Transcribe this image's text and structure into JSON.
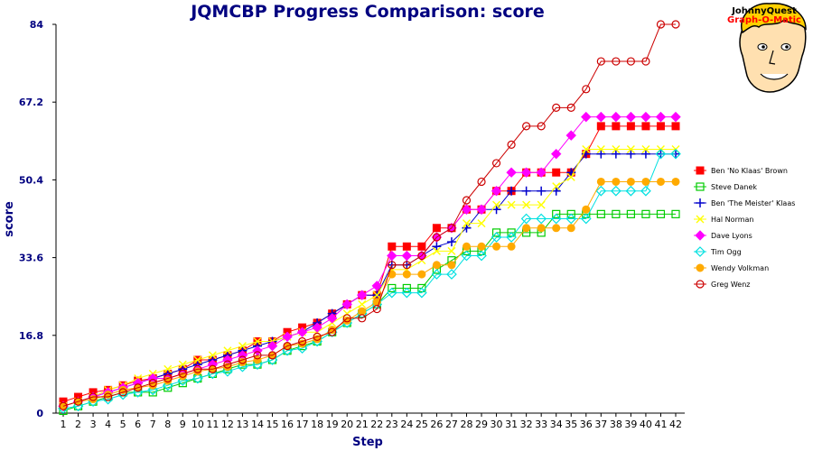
{
  "logo": {
    "line1": "JohnnyQuest",
    "line2": "Graph-O-Matic"
  },
  "chart_data": {
    "type": "line",
    "title": "JQMCBP Progress Comparison: score",
    "xlabel": "Step",
    "ylabel": "score",
    "ylim": [
      0,
      84
    ],
    "yticks": [
      "0",
      "16.8",
      "33.6",
      "50.4",
      "67.2",
      "84"
    ],
    "x": [
      1,
      2,
      3,
      4,
      5,
      6,
      7,
      8,
      9,
      10,
      11,
      12,
      13,
      14,
      15,
      16,
      17,
      18,
      19,
      20,
      21,
      22,
      23,
      24,
      25,
      26,
      27,
      28,
      29,
      30,
      31,
      32,
      33,
      34,
      35,
      36,
      37,
      38,
      39,
      40,
      41,
      42
    ],
    "legend_position": "right",
    "series": [
      {
        "name": "Ben 'No Klaas' Brown",
        "color": "#ff0000",
        "marker": "square-filled",
        "values": [
          2.5,
          3.5,
          4.5,
          5,
          6,
          7,
          7.5,
          8.5,
          9.5,
          11.5,
          11.5,
          12.5,
          13.5,
          15.5,
          15.5,
          17.5,
          18.5,
          19.5,
          21.5,
          23.5,
          25.5,
          25.5,
          36,
          36,
          36,
          40,
          40,
          44,
          44,
          48,
          48,
          52,
          52,
          52,
          52,
          56,
          62,
          62,
          62,
          62,
          62,
          62
        ]
      },
      {
        "name": "Steve Danek",
        "color": "#00cc00",
        "marker": "square-open",
        "values": [
          0.5,
          1.5,
          2.5,
          3.5,
          4.5,
          4.5,
          4.5,
          5.5,
          6.5,
          7.5,
          8.5,
          9.5,
          10.5,
          10.5,
          11.5,
          13.5,
          14.5,
          15.5,
          17.5,
          19.5,
          21.5,
          23.5,
          27,
          27,
          27,
          31,
          33,
          35,
          35,
          39,
          39,
          39,
          39,
          43,
          43,
          43,
          43,
          43,
          43,
          43,
          43,
          43
        ]
      },
      {
        "name": "Ben 'The Meister' Klaas",
        "color": "#0000cc",
        "marker": "plus",
        "values": [
          1.5,
          2.5,
          3.5,
          4.5,
          5.5,
          6.5,
          7.5,
          8.5,
          9.5,
          10.5,
          11.5,
          12.5,
          13.5,
          14.5,
          15.5,
          16.5,
          17.5,
          19.5,
          21.5,
          23.5,
          25.5,
          25.5,
          32,
          32,
          34,
          36,
          37,
          40,
          44,
          44,
          48,
          48,
          48,
          48,
          52,
          56,
          56,
          56,
          56,
          56,
          56,
          56
        ]
      },
      {
        "name": "Hal Norman",
        "color": "#ffff00",
        "marker": "cross",
        "values": [
          1.5,
          2.5,
          3.5,
          5,
          6,
          7.5,
          8.5,
          9.5,
          10.5,
          11.5,
          12.5,
          13.5,
          14.5,
          15.5,
          15.5,
          16.5,
          17.5,
          17.5,
          19.5,
          21.5,
          23.5,
          25.5,
          31,
          31,
          33,
          35,
          35,
          41,
          41,
          45,
          45,
          45,
          45,
          49,
          51,
          57,
          57,
          57,
          57,
          57,
          57,
          57
        ]
      },
      {
        "name": "Dave Lyons",
        "color": "#ff00ff",
        "marker": "diamond-filled",
        "values": [
          1.5,
          2.5,
          3.5,
          4.5,
          5.5,
          6.5,
          7.5,
          7.5,
          8.5,
          9.5,
          10.5,
          11.5,
          12.5,
          13.5,
          14.5,
          16.5,
          17.5,
          18.5,
          20.5,
          23.5,
          25.5,
          27.5,
          34,
          34,
          34,
          38,
          40,
          44,
          44,
          48,
          52,
          52,
          52,
          56,
          60,
          64,
          64,
          64,
          64,
          64,
          64,
          64
        ]
      },
      {
        "name": "Tim Ogg",
        "color": "#00e0e0",
        "marker": "diamond-open",
        "values": [
          1,
          1.5,
          2.5,
          3,
          4,
          4.5,
          5,
          6,
          7,
          7.5,
          8.5,
          9,
          10,
          10.5,
          11.5,
          13.5,
          14,
          15.5,
          17.5,
          19.5,
          21.5,
          23.5,
          26,
          26,
          26,
          30,
          30,
          34,
          34,
          38,
          38,
          42,
          42,
          42,
          42,
          42,
          48,
          48,
          48,
          48,
          56,
          56
        ]
      },
      {
        "name": "Wendy Volkman",
        "color": "#ffaa00",
        "marker": "circle-filled",
        "values": [
          1.5,
          2.5,
          3,
          4,
          5,
          5.5,
          6,
          7,
          8,
          9,
          9.5,
          10,
          11,
          11.5,
          12.5,
          14.5,
          15,
          16,
          18,
          20,
          22,
          24,
          30,
          30,
          30,
          32,
          32,
          36,
          36,
          36,
          36,
          40,
          40,
          40,
          40,
          44,
          50,
          50,
          50,
          50,
          50,
          50
        ]
      },
      {
        "name": "Greg Wenz",
        "color": "#cc0000",
        "marker": "circle-open",
        "values": [
          1.5,
          2.5,
          3.5,
          3.5,
          4.5,
          5.5,
          6.5,
          7.5,
          8.5,
          9.5,
          9.5,
          10.5,
          11.5,
          12.5,
          12.5,
          14.5,
          15.5,
          16.5,
          17.5,
          20.5,
          20.5,
          22.5,
          32,
          32,
          34,
          38,
          40,
          46,
          50,
          54,
          58,
          62,
          62,
          66,
          66,
          70,
          76,
          76,
          76,
          76,
          84,
          84
        ]
      }
    ]
  }
}
